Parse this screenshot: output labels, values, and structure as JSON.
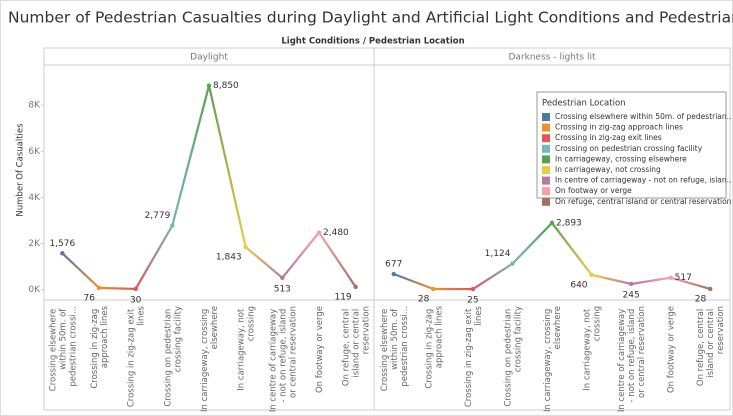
{
  "chart_data": {
    "type": "line",
    "title": "Number of Pedestrian Casualties during Daylight and Artificial Light Conditions and Pedestrian Location",
    "header": "Light Conditions / Pedestrian Location",
    "y_label": "Number Of Casualties",
    "categories": [
      "Crossing elsewhere within 50m. of pedestrian crossi...",
      "Crossing in zig-zag approach lines",
      "Crossing in zig-zag exit lines",
      "Crossing on pedestrian crossing facility",
      "In carriageway, crossing elsewhere",
      "In carriageway, not crossing",
      "In centre of carriageway - not on refuge, island or central reservation",
      "On footway or verge",
      "On refuge, central island or central reservation"
    ],
    "colors": [
      "#4e79a7",
      "#f28e2b",
      "#e15759",
      "#76b7b2",
      "#59a14f",
      "#edc948",
      "#b07aa1",
      "#ff9da7",
      "#9c755f"
    ],
    "legend_title": "Pedestrian Location",
    "legend_labels": [
      "Crossing elsewhere within 50m. of pedestrian..",
      "Crossing in zig-zag approach lines",
      "Crossing in zig-zag exit lines",
      "Crossing on pedestrian crossing facility",
      "In carriageway, crossing elsewhere",
      "In carriageway, not crossing",
      "In centre of carriageway - not on refuge, islan..",
      "On footway or verge",
      "On refuge, central island or central reservation"
    ],
    "panels": [
      {
        "name": "Daylight",
        "values": [
          1576,
          76,
          30,
          2779,
          8850,
          1843,
          513,
          2480,
          119
        ],
        "value_labels": [
          "1,576",
          "76",
          "30",
          "2,779",
          "8,850",
          "1,843",
          "513",
          "2,480",
          "119"
        ]
      },
      {
        "name": "Darkness - lights lit",
        "values": [
          677,
          28,
          25,
          1124,
          2893,
          640,
          245,
          517,
          28
        ],
        "value_labels": [
          "677",
          "28",
          "25",
          "1,124",
          "2,893",
          "640",
          "245",
          "517",
          "28"
        ]
      }
    ],
    "ylim": [
      -450,
      9700
    ],
    "yticks": [
      {
        "value": 0,
        "label": "0K"
      },
      {
        "value": 2000,
        "label": "2K"
      },
      {
        "value": 4000,
        "label": "4K"
      },
      {
        "value": 6000,
        "label": "6K"
      },
      {
        "value": 8000,
        "label": "8K"
      }
    ]
  }
}
